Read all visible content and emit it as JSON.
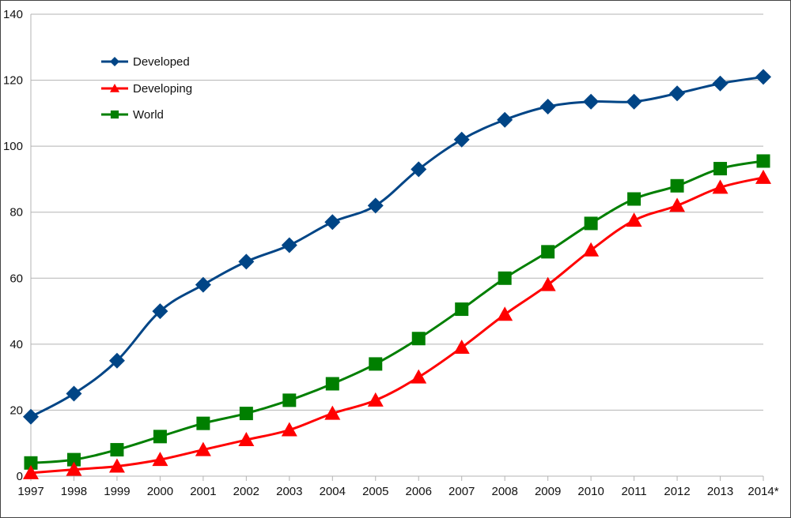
{
  "chart_data": {
    "type": "line",
    "categories": [
      "1997",
      "1998",
      "1999",
      "2000",
      "2001",
      "2002",
      "2003",
      "2004",
      "2005",
      "2006",
      "2007",
      "2008",
      "2009",
      "2010",
      "2011",
      "2012",
      "2013",
      "2014*"
    ],
    "series": [
      {
        "name": "Developed",
        "color": "#004586",
        "marker": "diamond",
        "values": [
          18,
          25,
          35,
          50,
          58,
          65,
          70,
          77,
          82,
          93,
          102,
          108,
          112,
          113.5,
          113.5,
          116,
          119,
          121
        ]
      },
      {
        "name": "Developing",
        "color": "#ff0000",
        "marker": "triangle",
        "values": [
          1,
          2,
          3,
          5,
          8,
          11,
          14,
          19,
          23,
          30,
          39,
          49,
          58,
          68.5,
          77.5,
          82,
          87.5,
          90.5
        ]
      },
      {
        "name": "World",
        "color": "#007f00",
        "marker": "square",
        "values": [
          4,
          5,
          8,
          12,
          16,
          19,
          23,
          28,
          34,
          41.7,
          50.6,
          60,
          68,
          76.6,
          84,
          88,
          93.2,
          95.5
        ]
      }
    ],
    "y_ticks": [
      "0",
      "20",
      "40",
      "60",
      "80",
      "100",
      "120",
      "140"
    ],
    "ylim": [
      0,
      140
    ],
    "grid": "horizontal",
    "legend_position": "top-left",
    "title": "",
    "xlabel": "",
    "ylabel": ""
  }
}
